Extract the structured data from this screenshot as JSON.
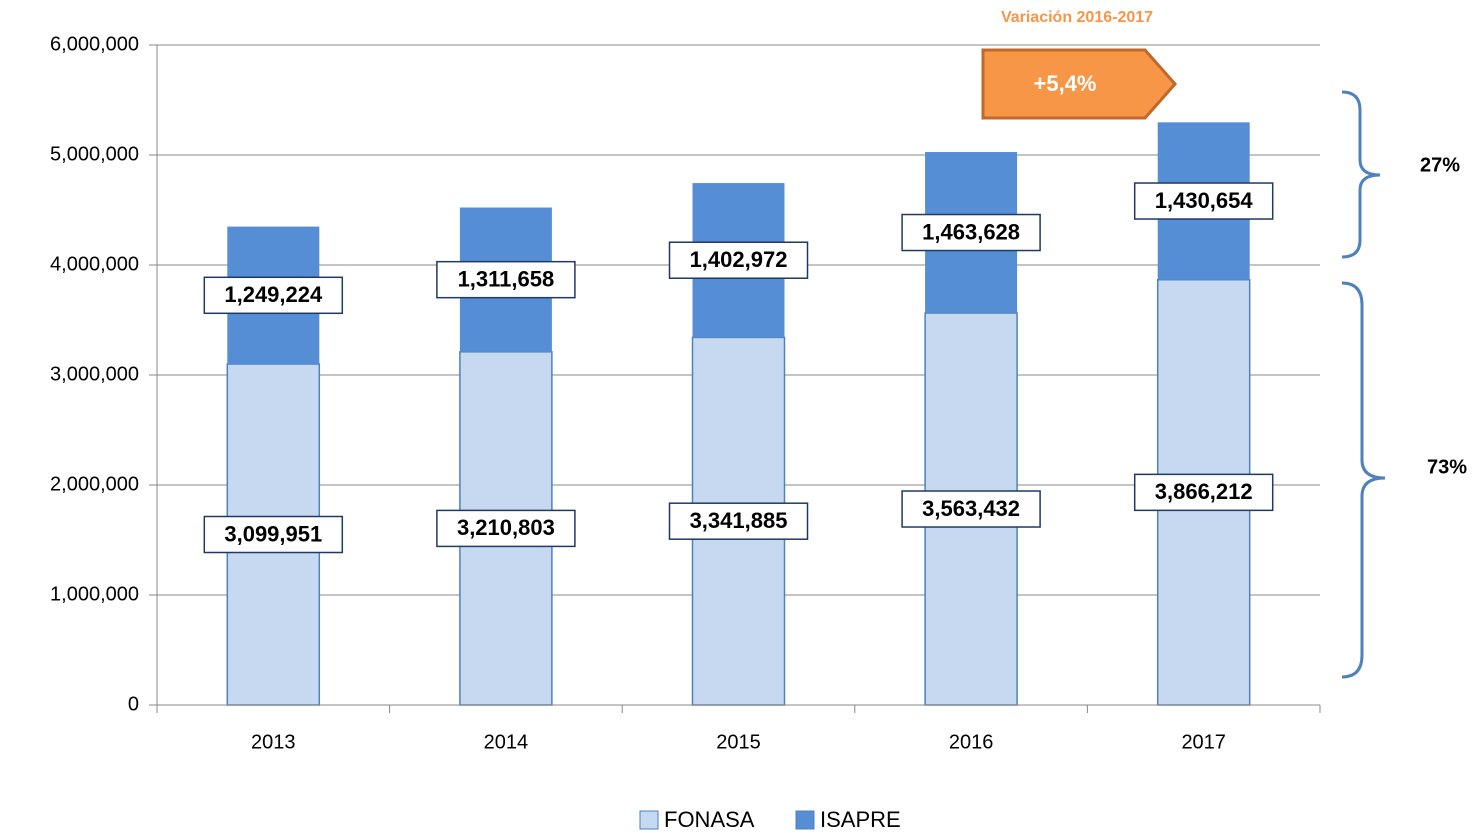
{
  "chart_data": {
    "type": "stacked_bar",
    "categories": [
      "2013",
      "2014",
      "2015",
      "2016",
      "2017"
    ],
    "series": [
      {
        "name": "FONASA",
        "color": "#c6d9f1",
        "values": [
          3099951,
          3210803,
          3341885,
          3563432,
          3866212
        ],
        "value_labels": [
          "3,099,951",
          "3,210,803",
          "3,341,885",
          "3,563,432",
          "3,866,212"
        ]
      },
      {
        "name": "ISAPRE",
        "color": "#558ed5",
        "values": [
          1249224,
          1311658,
          1402972,
          1463628,
          1430654
        ],
        "value_labels": [
          "1,249,224",
          "1,311,658",
          "1,402,972",
          "1,463,628",
          "1,430,654"
        ]
      }
    ],
    "ylim": [
      0,
      6000000
    ],
    "yticks": [
      0,
      {
        "value": 1000000,
        "label": "1,000,000"
      },
      {
        "value": 2000000,
        "label": "2,000,000"
      },
      {
        "value": 3000000,
        "label": "3,000,000"
      },
      {
        "value": 4000000,
        "label": "4,000,000"
      },
      {
        "value": 5000000,
        "label": "5,000,000"
      },
      {
        "value": 6000000,
        "label": "6,000,000"
      }
    ],
    "grid": true,
    "legend": "bottom",
    "annotations": {
      "variation_title": "Variación 2016-2017",
      "variation": "+5,4%",
      "isapre_share": "27%",
      "fonasa_share": "73%"
    }
  }
}
